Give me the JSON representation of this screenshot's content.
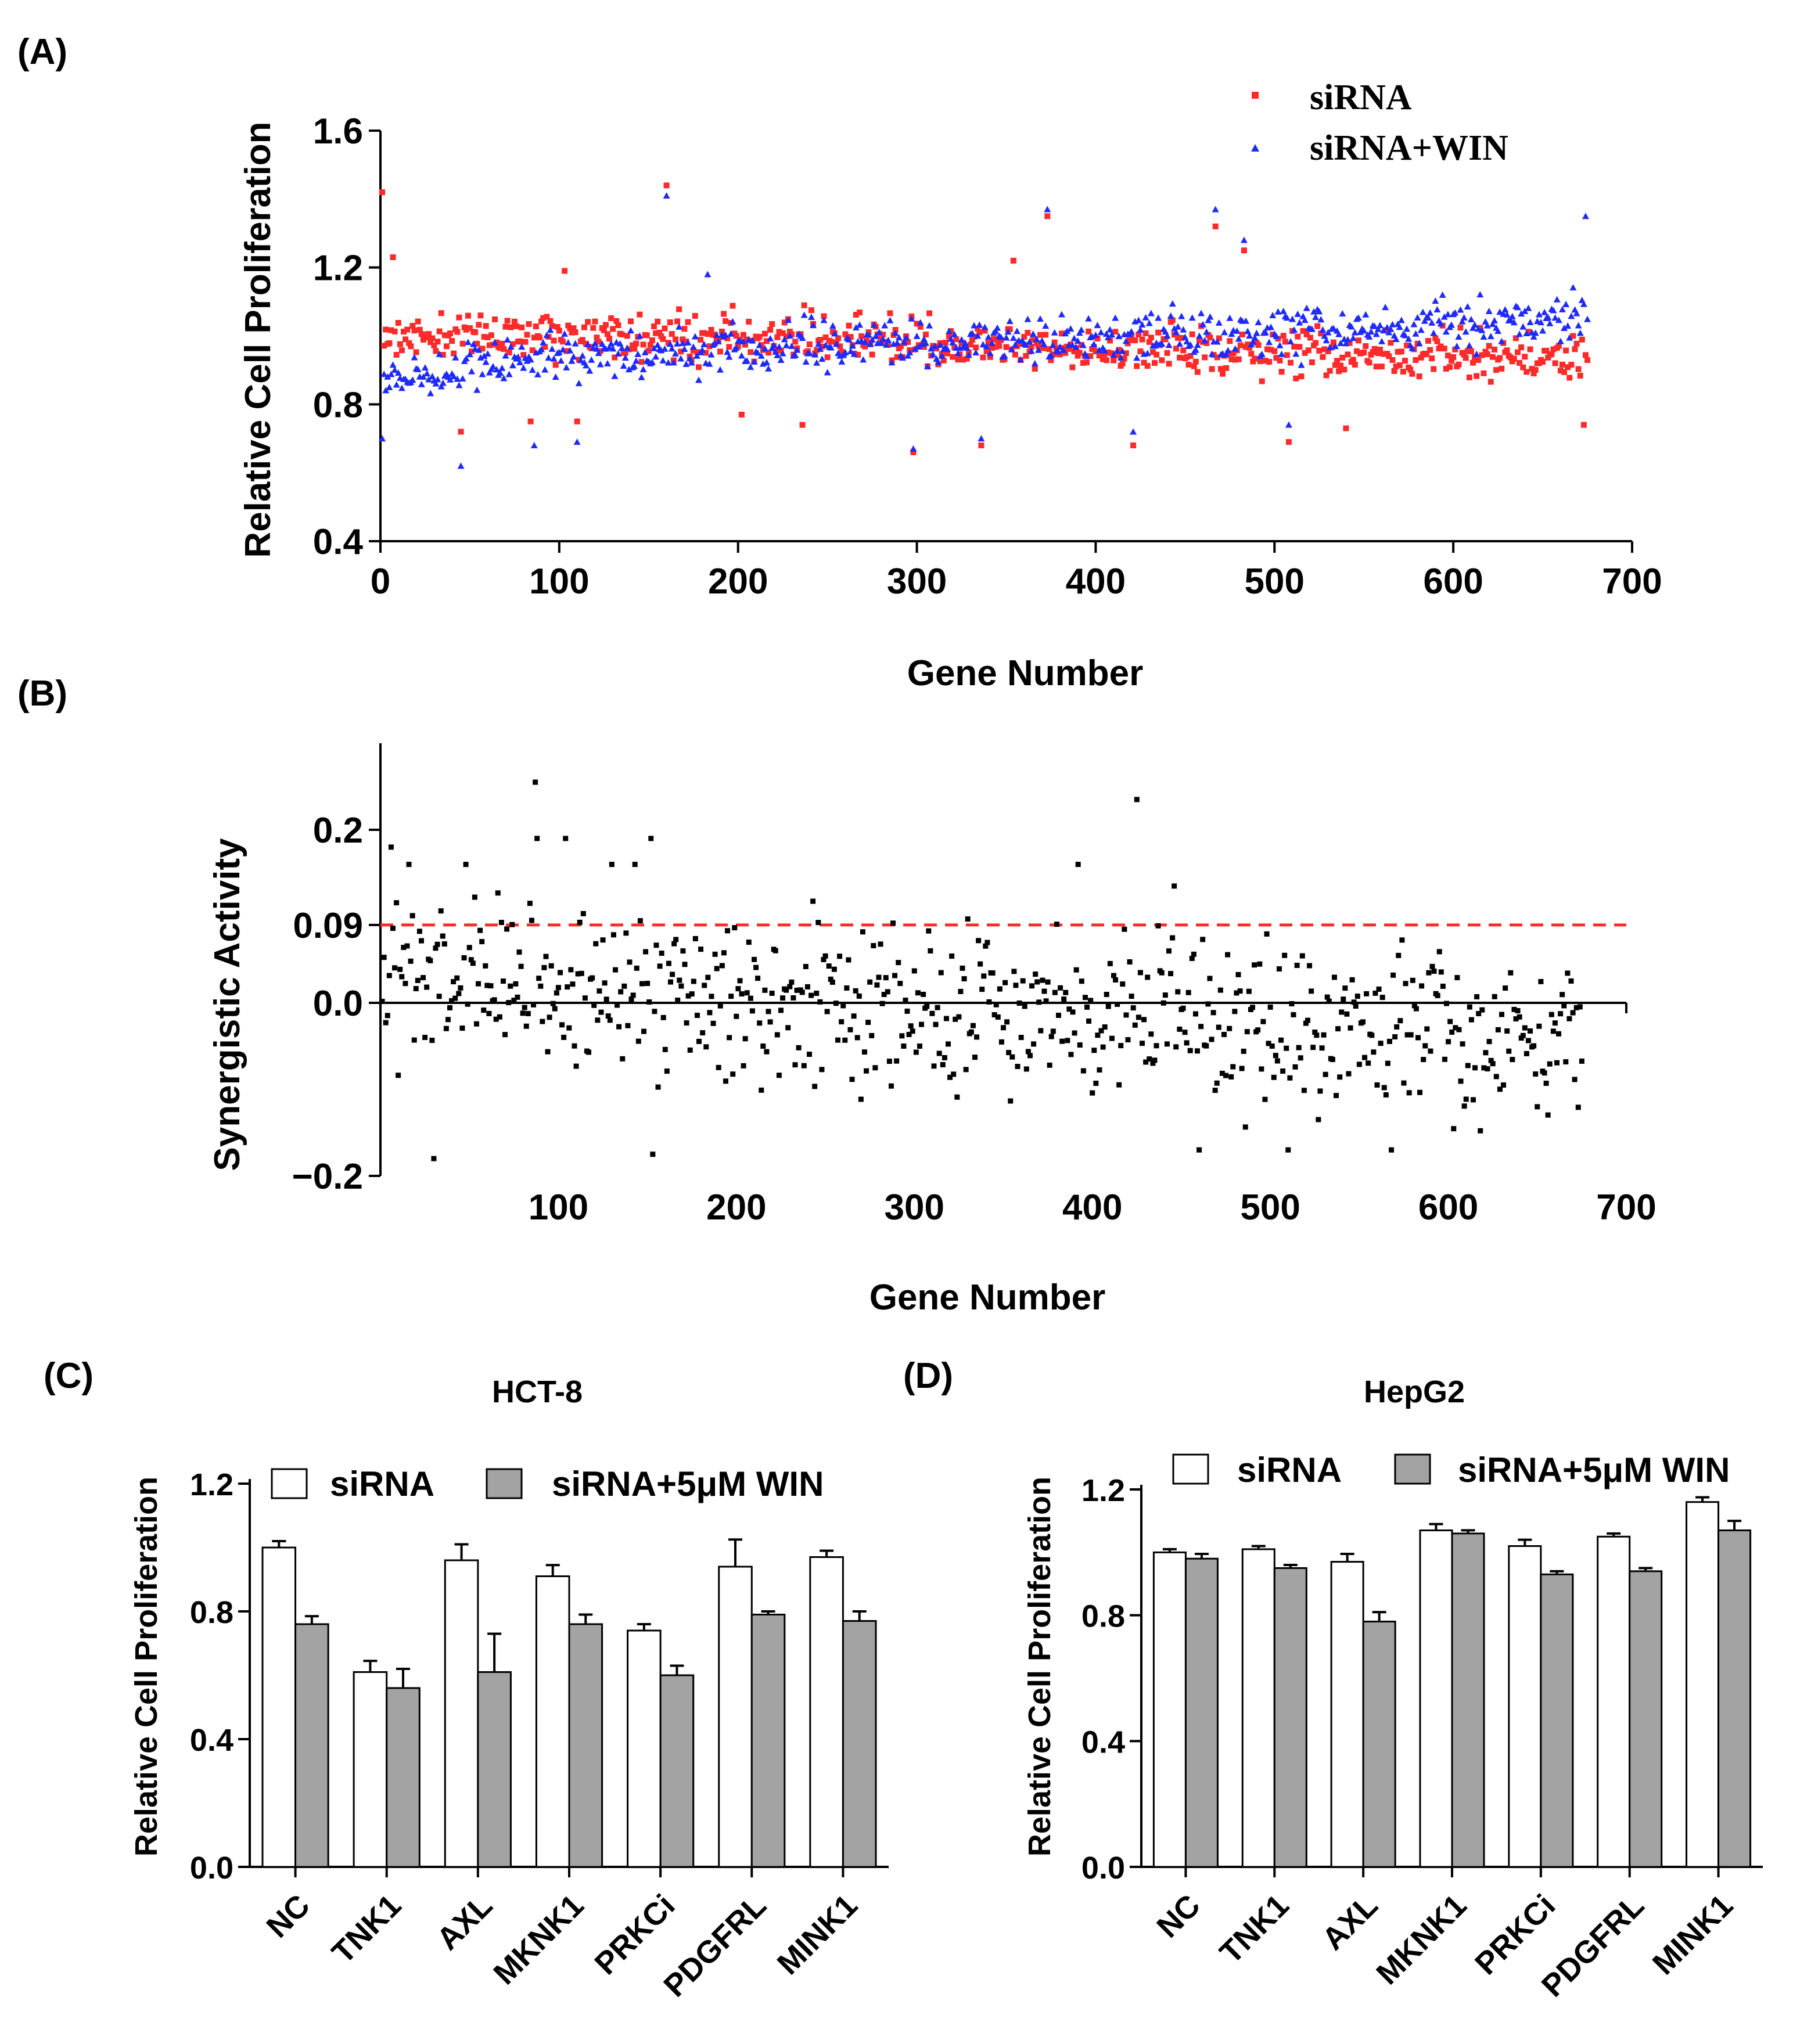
{
  "colors": {
    "axis": "#000000",
    "sirna_point": "#ff2a2a",
    "win_point": "#1f2aff",
    "dashed_threshold": "#ff2a2a",
    "bar_sirna_fill": "#ffffff",
    "bar_win_fill": "#a3a3a3"
  },
  "chart_data": [
    {
      "panel": "(A)",
      "type": "scatter",
      "xlabel": "Gene Number",
      "ylabel": "Relative Cell Proliferation",
      "xlim": [
        0,
        700
      ],
      "ylim": [
        0.4,
        1.6
      ],
      "xticks": [
        "0",
        "100",
        "200",
        "300",
        "400",
        "500",
        "600",
        "700"
      ],
      "yticks": [
        "0.4",
        "0.8",
        "1.2",
        "1.6"
      ],
      "legend": {
        "position": "top-right",
        "entries": [
          "siRNA",
          "siRNA+WIN"
        ]
      },
      "series": [
        {
          "name": "siRNA",
          "marker": "square",
          "n_points": 675,
          "typical_range": [
            0.85,
            1.1
          ],
          "notable_points": [
            [
              1,
              1.42
            ],
            [
              7,
              1.23
            ],
            [
              45,
              0.72
            ],
            [
              84,
              0.75
            ],
            [
              103,
              1.19
            ],
            [
              110,
              0.75
            ],
            [
              160,
              1.44
            ],
            [
              202,
              0.77
            ],
            [
              236,
              0.74
            ],
            [
              298,
              0.66
            ],
            [
              336,
              0.68
            ],
            [
              354,
              1.22
            ],
            [
              373,
              1.35
            ],
            [
              421,
              0.68
            ],
            [
              467,
              1.32
            ],
            [
              483,
              1.25
            ],
            [
              508,
              0.69
            ],
            [
              540,
              0.73
            ],
            [
              673,
              0.74
            ]
          ]
        },
        {
          "name": "siRNA+WIN",
          "marker": "triangle",
          "n_points": 675,
          "typical_range": [
            0.85,
            1.1
          ],
          "notable_points": [
            [
              1,
              0.7
            ],
            [
              45,
              0.62
            ],
            [
              86,
              0.68
            ],
            [
              110,
              0.69
            ],
            [
              160,
              1.41
            ],
            [
              183,
              1.18
            ],
            [
              298,
              0.67
            ],
            [
              336,
              0.7
            ],
            [
              373,
              1.37
            ],
            [
              421,
              0.72
            ],
            [
              467,
              1.37
            ],
            [
              483,
              1.28
            ],
            [
              508,
              0.74
            ],
            [
              674,
              1.35
            ]
          ]
        }
      ]
    },
    {
      "panel": "(B)",
      "type": "scatter",
      "xlabel": "Gene Number",
      "ylabel": "Synergistic Activity",
      "xlim": [
        0,
        700
      ],
      "ylim": [
        -0.2,
        0.3
      ],
      "xticks": [
        "100",
        "200",
        "300",
        "400",
        "500",
        "600",
        "700"
      ],
      "yticks": [
        "−0.2",
        "0.0",
        "0.09",
        "0.2"
      ],
      "threshold": 0.09,
      "zero_line": 0.0,
      "series": [
        {
          "name": "synergy",
          "marker": "square",
          "n_points": 675,
          "typical_range": [
            -0.15,
            0.15
          ],
          "notable_points": [
            [
              87,
              0.255
            ],
            [
              88,
              0.19
            ],
            [
              104,
              0.19
            ],
            [
              152,
              0.19
            ],
            [
              425,
              0.235
            ],
            [
              6,
              0.18
            ],
            [
              16,
              0.16
            ],
            [
              48,
              0.16
            ],
            [
              446,
              0.135
            ],
            [
              130,
              0.16
            ],
            [
              143,
              0.16
            ],
            [
              392,
              0.16
            ],
            [
              30,
              -0.18
            ],
            [
              153,
              -0.175
            ],
            [
              460,
              -0.17
            ],
            [
              510,
              -0.17
            ],
            [
              568,
              -0.17
            ]
          ]
        }
      ]
    },
    {
      "panel": "(C)",
      "type": "bar",
      "title": "HCT-8",
      "ylabel": "Relative Cell Proliferation",
      "ylim": [
        0.0,
        1.2
      ],
      "yticks": [
        "0.0",
        "0.4",
        "0.8",
        "1.2"
      ],
      "categories": [
        "NC",
        "TNK1",
        "AXL",
        "MKNK1",
        "PRKCi",
        "PDGFRL",
        "MINK1"
      ],
      "legend": {
        "position": "top",
        "entries": [
          "siRNA",
          "siRNA+5μM WIN"
        ]
      },
      "series": [
        {
          "name": "siRNA",
          "values": [
            1.0,
            0.61,
            0.96,
            0.91,
            0.74,
            0.94,
            0.97
          ],
          "errors": [
            0.02,
            0.035,
            0.05,
            0.035,
            0.02,
            0.085,
            0.02
          ]
        },
        {
          "name": "siRNA+5μM WIN",
          "values": [
            0.76,
            0.56,
            0.61,
            0.76,
            0.6,
            0.79,
            0.77
          ],
          "errors": [
            0.025,
            0.06,
            0.12,
            0.03,
            0.03,
            0.01,
            0.03
          ]
        }
      ]
    },
    {
      "panel": "(D)",
      "type": "bar",
      "title": "HepG2",
      "ylabel": "Relative Cell Proliferation",
      "ylim": [
        0.0,
        1.2
      ],
      "yticks": [
        "0.0",
        "0.4",
        "0.8",
        "1.2"
      ],
      "categories": [
        "NC",
        "TNK1",
        "AXL",
        "MKNK1",
        "PRKCi",
        "PDGFRL",
        "MINK1"
      ],
      "legend": {
        "position": "top",
        "entries": [
          "siRNA",
          "siRNA+5μM WIN"
        ]
      },
      "series": [
        {
          "name": "siRNA",
          "values": [
            1.0,
            1.01,
            0.97,
            1.07,
            1.02,
            1.05,
            1.16
          ],
          "errors": [
            0.01,
            0.01,
            0.025,
            0.02,
            0.02,
            0.01,
            0.015
          ]
        },
        {
          "name": "siRNA+5μM WIN",
          "values": [
            0.98,
            0.95,
            0.78,
            1.06,
            0.93,
            0.94,
            1.07
          ],
          "errors": [
            0.015,
            0.01,
            0.03,
            0.01,
            0.01,
            0.01,
            0.03
          ]
        }
      ]
    }
  ]
}
